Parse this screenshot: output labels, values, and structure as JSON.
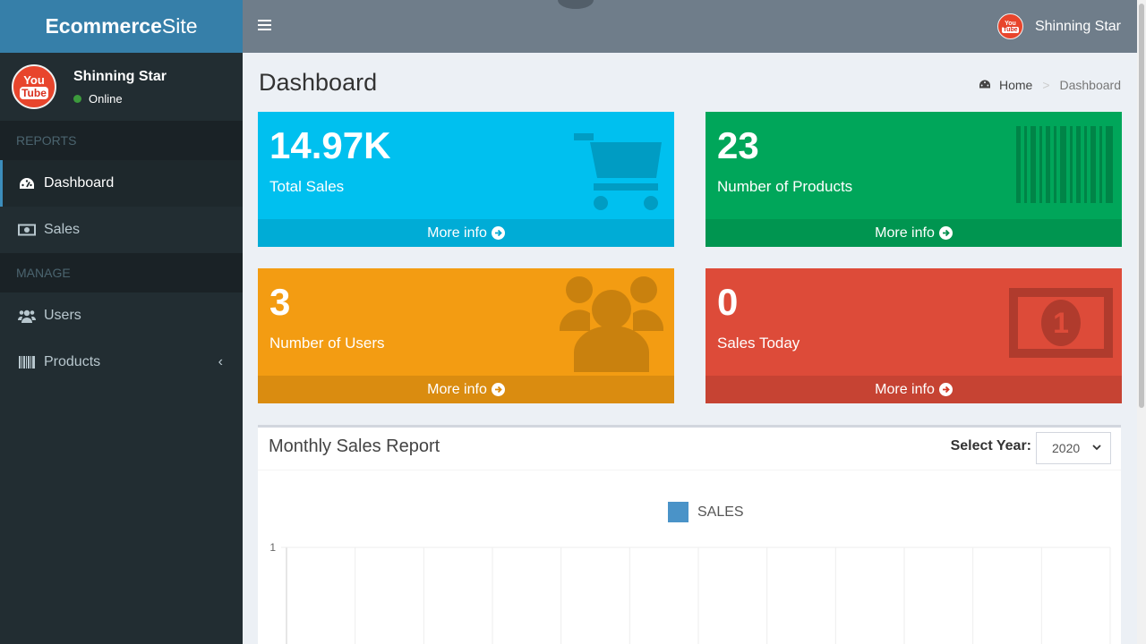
{
  "brand": {
    "bold": "Ecommerce",
    "light": "Site"
  },
  "user": {
    "name": "Shinning Star",
    "status": "Online",
    "avatar_text_1": "You",
    "avatar_text_2": "Tube"
  },
  "sidebar": {
    "sections": [
      {
        "header": "REPORTS",
        "items": [
          {
            "label": "Dashboard",
            "icon": "dashboard-icon",
            "active": true
          },
          {
            "label": "Sales",
            "icon": "money-icon"
          }
        ]
      },
      {
        "header": "MANAGE",
        "items": [
          {
            "label": "Users",
            "icon": "users-icon"
          },
          {
            "label": "Products",
            "icon": "barcode-icon"
          }
        ]
      }
    ]
  },
  "page": {
    "title": "Dashboard"
  },
  "breadcrumb": {
    "home": "Home",
    "current": "Dashboard"
  },
  "boxes": [
    {
      "value": "14.97K",
      "label": "Total Sales",
      "more": "More info",
      "color": "#00c0ef",
      "icon": "cart-icon"
    },
    {
      "value": "23",
      "label": "Number of Products",
      "more": "More info",
      "color": "#00a65a",
      "icon": "barcode-icon"
    },
    {
      "value": "3",
      "label": "Number of Users",
      "more": "More info",
      "color": "#f39c12",
      "icon": "users-icon"
    },
    {
      "value": "0",
      "label": "Sales Today",
      "more": "More info",
      "color": "#dd4b39",
      "icon": "money-icon"
    }
  ],
  "report": {
    "title": "Monthly Sales Report",
    "year_label": "Select Year:",
    "year_value": "2020"
  },
  "chart_data": {
    "type": "bar",
    "series": [
      {
        "name": "SALES",
        "values": []
      }
    ],
    "y_tick_labels": [
      "1"
    ],
    "grid": true,
    "legend": "top-center"
  }
}
